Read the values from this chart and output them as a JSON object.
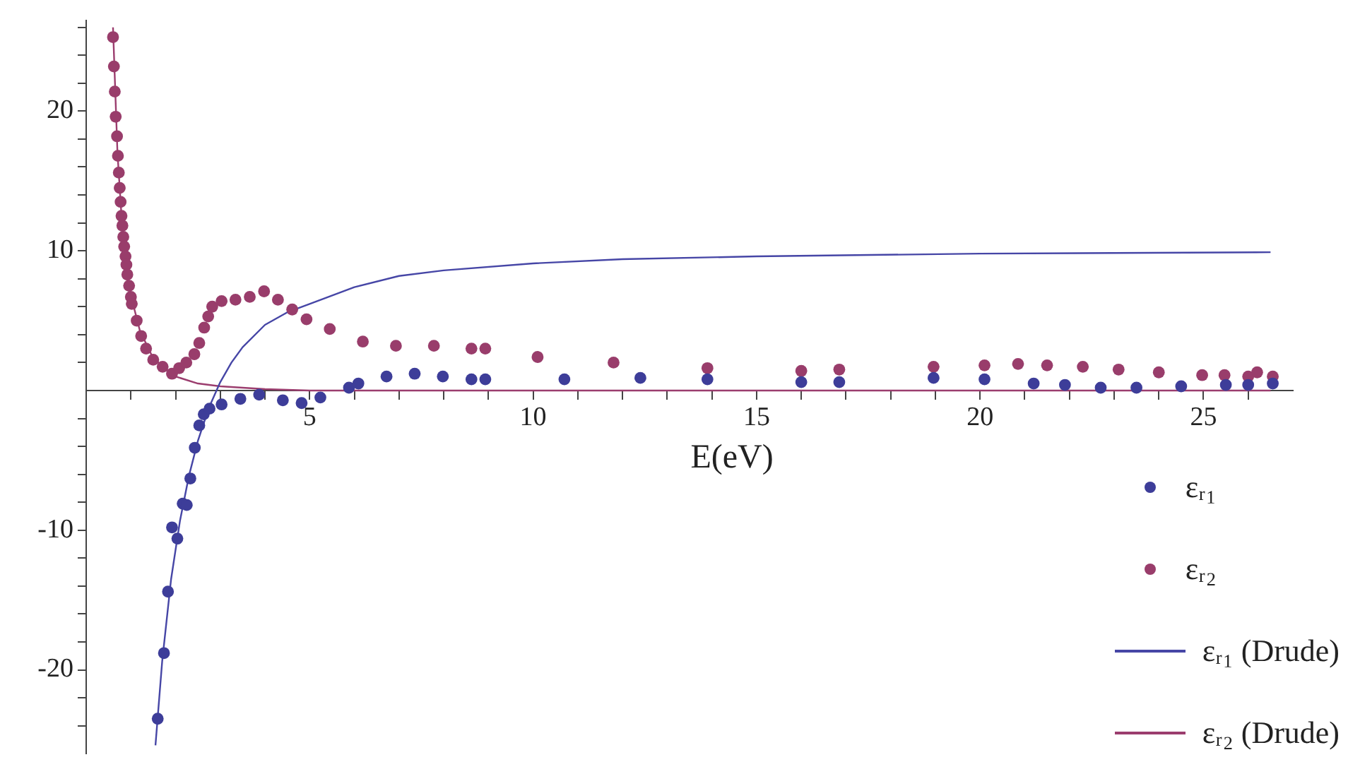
{
  "chart_data": {
    "type": "scatter",
    "xlabel": "E(eV)",
    "xlim": [
      0,
      27
    ],
    "ylim": [
      -26,
      26.5
    ],
    "xticks": [
      {
        "value": 1,
        "label": null
      },
      {
        "value": 2,
        "label": null
      },
      {
        "value": 3,
        "label": null
      },
      {
        "value": 4,
        "label": null
      },
      5,
      {
        "value": 6,
        "label": null
      },
      {
        "value": 7,
        "label": null
      },
      {
        "value": 8,
        "label": null
      },
      {
        "value": 9,
        "label": null
      },
      10,
      {
        "value": 11,
        "label": null
      },
      {
        "value": 12,
        "label": null
      },
      {
        "value": 13,
        "label": null
      },
      {
        "value": 14,
        "label": null
      },
      15,
      {
        "value": 16,
        "label": null
      },
      {
        "value": 17,
        "label": null
      },
      {
        "value": 18,
        "label": null
      },
      {
        "value": 19,
        "label": null
      },
      20,
      {
        "value": 21,
        "label": null
      },
      {
        "value": 22,
        "label": null
      },
      {
        "value": 23,
        "label": null
      },
      {
        "value": 24,
        "label": null
      },
      25,
      {
        "value": 26,
        "label": null
      }
    ],
    "yticks": [
      {
        "value": -24,
        "label": null
      },
      {
        "value": -22,
        "label": null
      },
      -20,
      {
        "value": -18,
        "label": null
      },
      {
        "value": -16,
        "label": null
      },
      {
        "value": -14,
        "label": null
      },
      {
        "value": -12,
        "label": null
      },
      -10,
      {
        "value": -8,
        "label": null
      },
      {
        "value": -6,
        "label": null
      },
      {
        "value": -4,
        "label": null
      },
      {
        "value": -2,
        "label": null
      },
      {
        "value": 2,
        "label": null
      },
      {
        "value": 4,
        "label": null
      },
      {
        "value": 6,
        "label": null
      },
      {
        "value": 8,
        "label": null
      },
      10,
      {
        "value": 12,
        "label": null
      },
      {
        "value": 14,
        "label": null
      },
      {
        "value": 16,
        "label": null
      },
      {
        "value": 18,
        "label": null
      },
      20,
      {
        "value": 22,
        "label": null
      },
      {
        "value": 24,
        "label": null
      },
      {
        "value": 26,
        "label": null
      }
    ],
    "grid": false,
    "legend": "bottom right",
    "series": [
      {
        "name": "εᵣ₁",
        "marker": "circle",
        "color": "#3d3d99",
        "x": [
          1.6,
          1.74,
          1.83,
          1.92,
          2.04,
          2.16,
          2.25,
          2.33,
          2.43,
          2.53,
          2.63,
          2.76,
          3.03,
          3.45,
          3.87,
          4.4,
          4.82,
          5.24,
          5.88,
          6.09,
          6.72,
          7.35,
          7.98,
          8.62,
          8.93,
          10.7,
          12.4,
          13.9,
          16.0,
          16.85,
          18.96,
          20.1,
          21.2,
          21.9,
          22.7,
          23.5,
          24.5,
          25.5,
          26.0,
          26.55
        ],
        "values": [
          -23.5,
          -18.8,
          -14.4,
          -9.8,
          -10.6,
          -8.1,
          -8.2,
          -6.3,
          -4.1,
          -2.5,
          -1.7,
          -1.3,
          -1.0,
          -0.6,
          -0.3,
          -0.7,
          -0.9,
          -0.5,
          0.2,
          0.5,
          1.0,
          1.2,
          1.0,
          0.8,
          0.8,
          0.8,
          0.9,
          0.8,
          0.6,
          0.6,
          0.9,
          0.8,
          0.5,
          0.4,
          0.2,
          0.2,
          0.3,
          0.4,
          0.4,
          0.5
        ]
      },
      {
        "name": "εᵣ₂",
        "marker": "circle",
        "color": "#993d6b",
        "x": [
          0.6,
          0.62,
          0.64,
          0.66,
          0.69,
          0.71,
          0.73,
          0.75,
          0.77,
          0.79,
          0.81,
          0.83,
          0.85,
          0.88,
          0.9,
          0.92,
          0.96,
          1.0,
          1.02,
          1.13,
          1.23,
          1.34,
          1.5,
          1.71,
          1.92,
          2.08,
          2.24,
          2.42,
          2.53,
          2.64,
          2.73,
          2.82,
          3.03,
          3.34,
          3.66,
          3.98,
          4.29,
          4.61,
          4.93,
          5.45,
          6.19,
          6.93,
          7.78,
          8.62,
          8.93,
          10.1,
          11.8,
          13.9,
          16.0,
          16.85,
          18.96,
          20.1,
          20.85,
          21.5,
          22.3,
          23.1,
          24.0,
          24.97,
          25.47,
          26.0,
          26.2,
          26.55
        ],
        "values": [
          25.3,
          23.2,
          21.4,
          19.6,
          18.2,
          16.8,
          15.6,
          14.5,
          13.5,
          12.5,
          11.8,
          11.0,
          10.3,
          9.6,
          9.0,
          8.3,
          7.5,
          6.7,
          6.2,
          5.0,
          3.9,
          3.0,
          2.2,
          1.7,
          1.2,
          1.6,
          2.0,
          2.6,
          3.4,
          4.5,
          5.3,
          6.0,
          6.4,
          6.5,
          6.7,
          7.1,
          6.5,
          5.8,
          5.1,
          4.4,
          3.5,
          3.2,
          3.2,
          3.0,
          3.0,
          2.4,
          2.0,
          1.6,
          1.4,
          1.5,
          1.7,
          1.8,
          1.9,
          1.8,
          1.7,
          1.5,
          1.3,
          1.1,
          1.1,
          1.0,
          1.3,
          1.0
        ]
      },
      {
        "name": "εᵣ₁ (Drude)",
        "type": "line",
        "marker": "none",
        "color": "#4646a6",
        "x": [
          1.55,
          1.7,
          1.9,
          2.1,
          2.3,
          2.5,
          2.75,
          3.0,
          3.25,
          3.5,
          4,
          4.5,
          5,
          6,
          7,
          8,
          10,
          12,
          15,
          20,
          26.5
        ],
        "values": [
          -25.4,
          -19.4,
          -13.5,
          -9.3,
          -6.1,
          -3.6,
          -1.2,
          0.6,
          2.0,
          3.1,
          4.7,
          5.6,
          6.2,
          7.4,
          8.2,
          8.6,
          9.1,
          9.4,
          9.6,
          9.8,
          9.9
        ]
      },
      {
        "name": "εᵣ₂ (Drude)",
        "type": "line",
        "marker": "none",
        "color": "#9b3d6e",
        "x": [
          0.6,
          0.7,
          0.8,
          0.9,
          1.0,
          1.2,
          1.5,
          2.0,
          2.5,
          3,
          4,
          5,
          26.5
        ],
        "values": [
          26,
          17,
          12,
          9,
          6.8,
          4.3,
          2.3,
          1.0,
          0.5,
          0.3,
          0.1,
          0,
          0
        ]
      }
    ]
  }
}
